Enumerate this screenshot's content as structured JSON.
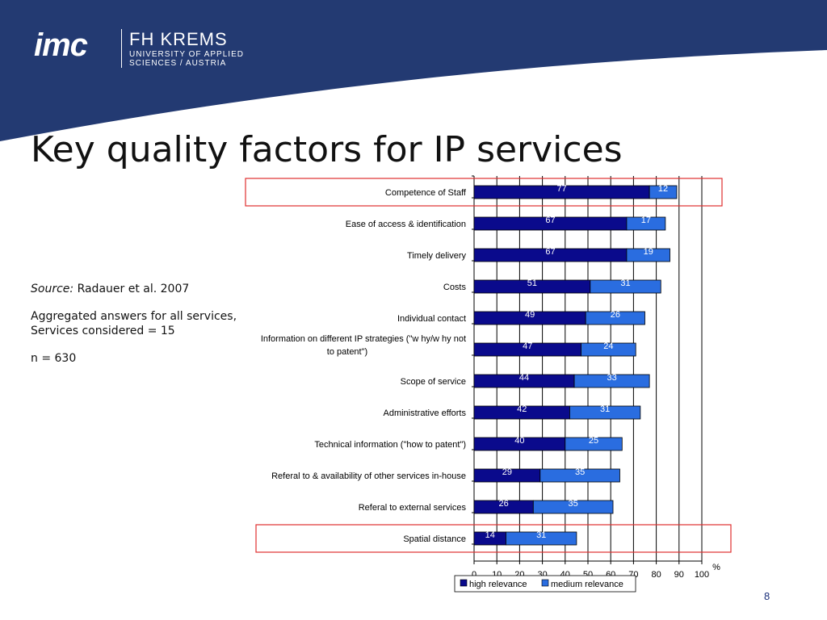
{
  "corner_number": "8",
  "logo": {
    "imc": "imc",
    "name": "FH KREMS",
    "line1": "UNIVERSITY OF APPLIED",
    "line2": "SCIENCES / AUSTRIA"
  },
  "title": "Key quality factors for IP services",
  "source_label": "Source:",
  "source_text": "Radauer et al. 2007",
  "notes": [
    "Aggregated answers for all services,",
    "Services considered = 15",
    "n = 630"
  ],
  "page_number": "8",
  "colors": {
    "banner": "#233a72",
    "high": "#0a0a8c",
    "medium": "#2a6de0",
    "highlight": "#e03030"
  },
  "chart_data": {
    "type": "bar",
    "orientation": "horizontal",
    "stacked": true,
    "categories": [
      "Competence of Staff",
      "Ease of access & identification",
      "Timely delivery",
      "Costs",
      "Individual contact",
      "Information on different IP strategies (\"w hy/w hy not to patent\")",
      "Scope of service",
      "Administrative efforts",
      "Technical information (\"how  to patent\")",
      "Referal to & availability of other services in-house",
      "Referal to external services",
      "Spatial distance"
    ],
    "category_lines": [
      [
        "Competence of Staff"
      ],
      [
        "Ease of access & identification"
      ],
      [
        "Timely delivery"
      ],
      [
        "Costs"
      ],
      [
        "Individual contact"
      ],
      [
        "Information on different IP strategies (\"w hy/w hy not",
        "to patent\")"
      ],
      [
        "Scope of service"
      ],
      [
        "Administrative efforts"
      ],
      [
        "Technical information (\"how  to patent\")"
      ],
      [
        "Referal to & availability of other services in-house"
      ],
      [
        "Referal to external services"
      ],
      [
        "Spatial distance"
      ]
    ],
    "series": [
      {
        "name": "high relevance",
        "values": [
          77,
          67,
          67,
          51,
          49,
          47,
          44,
          42,
          40,
          29,
          26,
          14
        ]
      },
      {
        "name": "medium relevance",
        "values": [
          12,
          17,
          19,
          31,
          26,
          24,
          33,
          31,
          25,
          35,
          35,
          31
        ]
      }
    ],
    "xlim": [
      0,
      100
    ],
    "xticks": [
      0,
      10,
      20,
      30,
      40,
      50,
      60,
      70,
      80,
      90,
      100
    ],
    "xunit": "%",
    "grid": true,
    "legend_position": "bottom",
    "highlighted_categories": [
      "Competence of Staff",
      "Spatial distance"
    ]
  }
}
